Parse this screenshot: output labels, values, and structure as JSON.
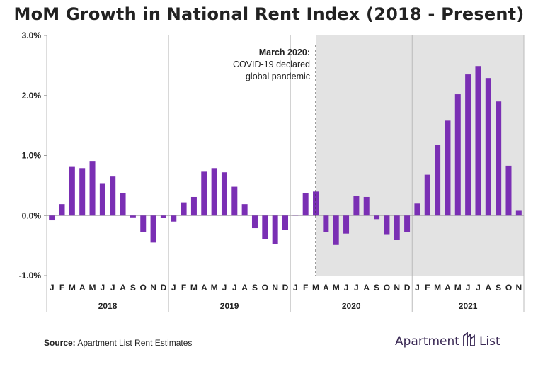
{
  "title": "MoM Growth in National Rent Index (2018 - Present)",
  "colors": {
    "bar": "#7a2fb4",
    "shade": "#e3e3e3",
    "axis": "#999999",
    "text": "#222222"
  },
  "annotation": {
    "heading": "March 2020:",
    "line1": "COVID-19 declared",
    "line2": "global pandemic"
  },
  "source": {
    "label": "Source:",
    "text": " Apartment List Rent Estimates"
  },
  "logo": {
    "left": "Apartment",
    "right": "List",
    "mark_icon": "apartment-list-logo-icon"
  },
  "chart_data": {
    "type": "bar",
    "ylim": [
      -1.0,
      3.0
    ],
    "yticks": [
      "-1.0%",
      "0.0%",
      "1.0%",
      "2.0%",
      "3.0%"
    ],
    "month_labels": [
      "J",
      "F",
      "M",
      "A",
      "M",
      "J",
      "J",
      "A",
      "S",
      "O",
      "N",
      "D"
    ],
    "years": [
      {
        "year": "2018",
        "values": [
          -0.08,
          0.19,
          0.81,
          0.79,
          0.91,
          0.54,
          0.65,
          0.37,
          -0.03,
          -0.27,
          -0.45,
          -0.04
        ]
      },
      {
        "year": "2019",
        "values": [
          -0.1,
          0.22,
          0.31,
          0.73,
          0.79,
          0.72,
          0.48,
          0.19,
          -0.21,
          -0.39,
          -0.48,
          -0.24
        ]
      },
      {
        "year": "2020",
        "values": [
          0.01,
          0.37,
          0.4,
          -0.27,
          -0.49,
          -0.3,
          0.33,
          0.31,
          -0.06,
          -0.31,
          -0.41,
          -0.27
        ]
      },
      {
        "year": "2021",
        "values": [
          0.2,
          0.68,
          1.18,
          1.58,
          2.02,
          2.35,
          2.49,
          2.29,
          1.9,
          0.83,
          0.08
        ]
      }
    ]
  }
}
